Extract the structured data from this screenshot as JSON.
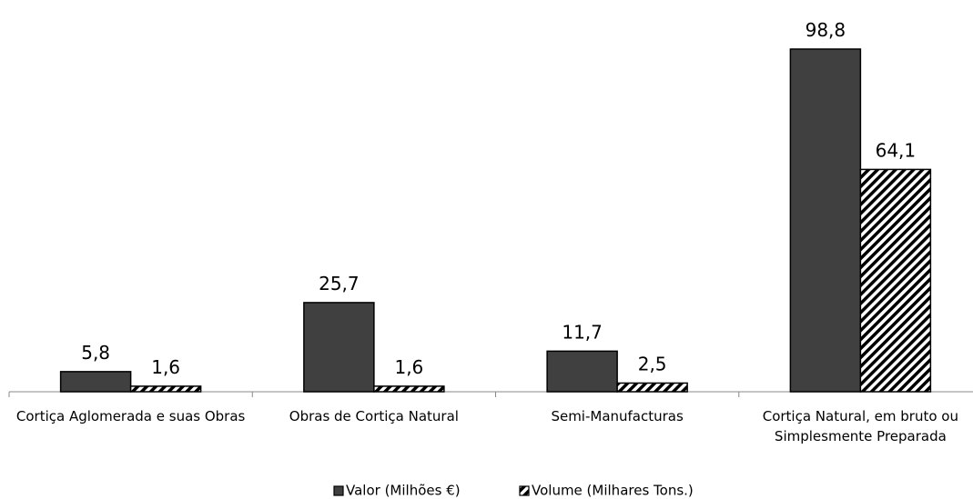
{
  "chart_data": {
    "type": "bar",
    "categories": [
      "Cortiça  Aglomerada e suas Obras",
      "Obras de Cortiça Natural",
      "Semi-Manufacturas",
      "Cortiça Natural, em bruto ou Simplesmente Preparada"
    ],
    "series": [
      {
        "name": "Valor (Milhões €)",
        "color": "#404040",
        "values": [
          5.8,
          25.7,
          11.7,
          98.8
        ],
        "value_labels": [
          "5,8",
          "25,7",
          "11,7",
          "98,8"
        ]
      },
      {
        "name": "Volume (Milhares Tons.)",
        "color": "#ffffff",
        "pattern": "diagonal-hatch",
        "values": [
          1.6,
          1.6,
          2.5,
          64.1
        ],
        "value_labels": [
          "1,6",
          "1,6",
          "2,5",
          "64,1"
        ]
      }
    ],
    "legend": "bottom"
  }
}
